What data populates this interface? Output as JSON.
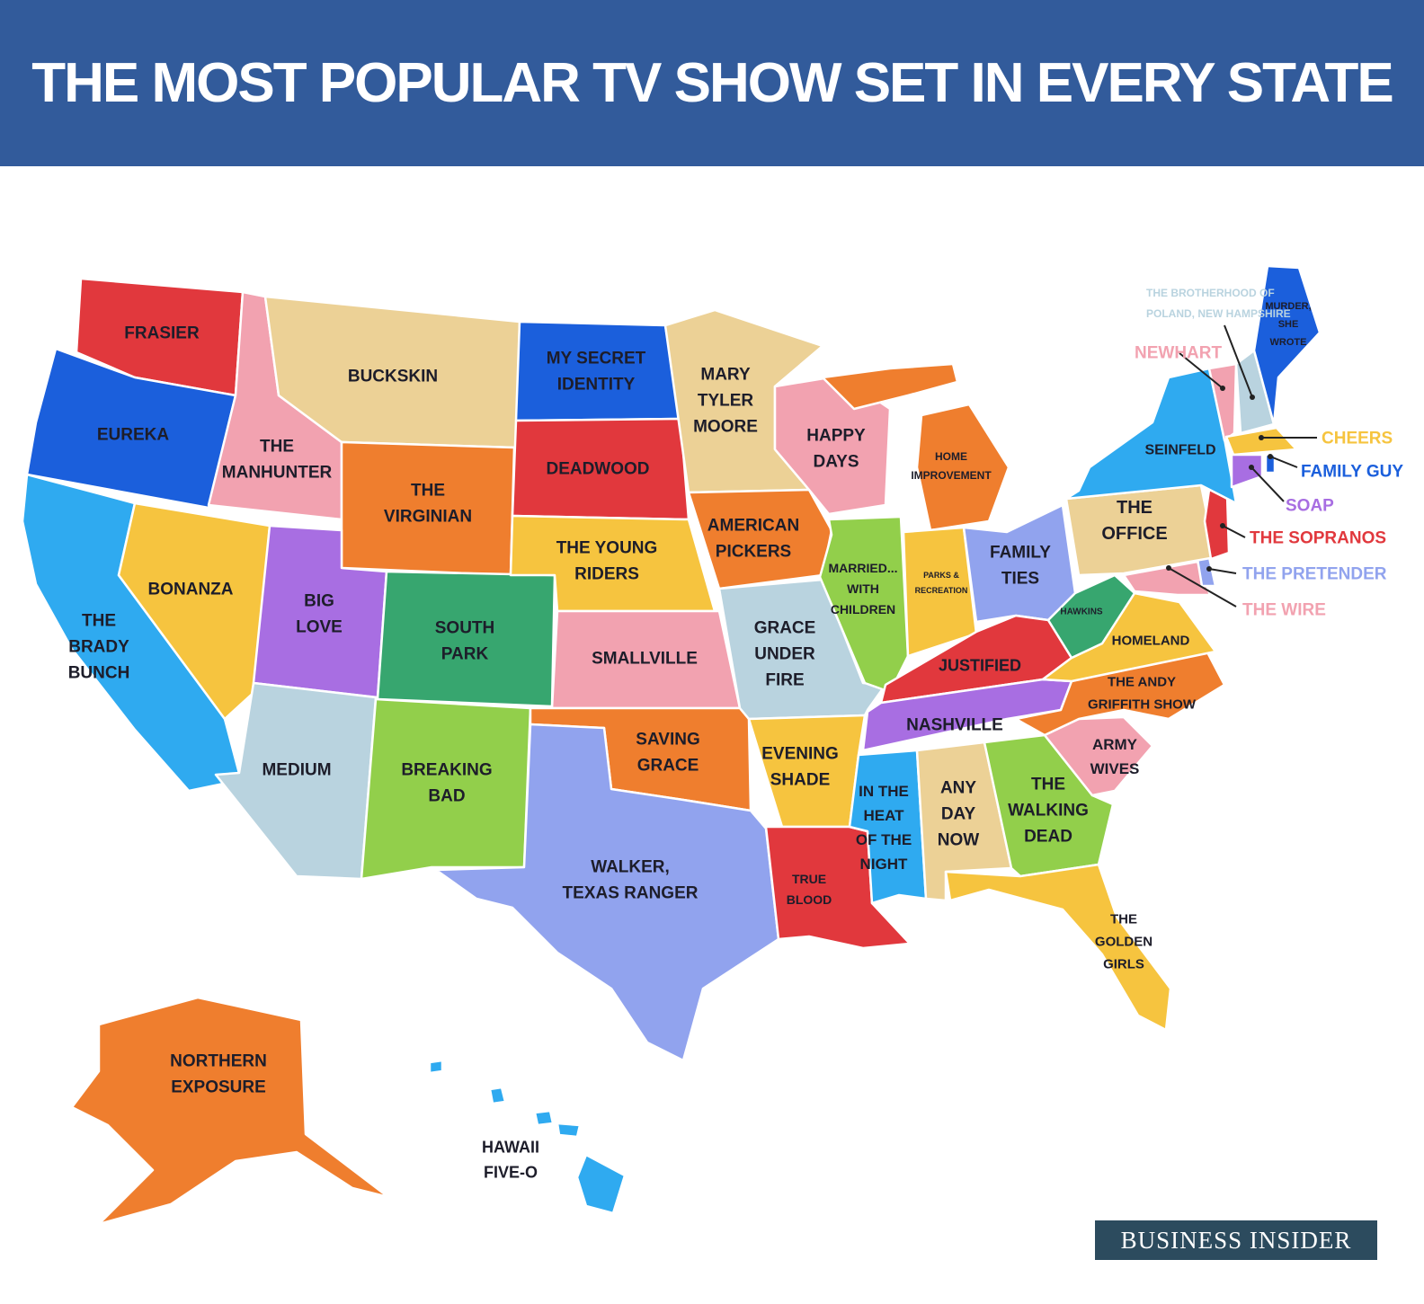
{
  "title": "THE MOST POPULAR TV SHOW SET IN EVERY STATE",
  "brand": "BUSINESS INSIDER",
  "colors": {
    "header": "#325b9b",
    "red": "#e1383d",
    "blue": "#1b5fdc",
    "tan": "#ecd196",
    "pink": "#f2a2b0",
    "orange": "#ef7e2e",
    "yellow": "#f6c43f",
    "purple": "#a86ee2",
    "teal": "#37a66f",
    "lightblue": "#2faaf0",
    "lightgreen": "#92cf4b",
    "grayblue": "#b9d3df",
    "periwinkle": "#91a3ee"
  },
  "regions": {
    "WA": {
      "color": "red",
      "lines": [
        "FRASIER"
      ]
    },
    "OR": {
      "color": "blue",
      "lines": [
        "EUREKA"
      ]
    },
    "CA": {
      "color": "lightblue",
      "lines": [
        "THE",
        "BRADY",
        "BUNCH"
      ]
    },
    "NV": {
      "color": "yellow",
      "lines": [
        "BONANZA"
      ]
    },
    "ID": {
      "color": "pink",
      "lines": [
        "THE",
        "MANHUNTER"
      ]
    },
    "MT": {
      "color": "tan",
      "lines": [
        "BUCKSKIN"
      ]
    },
    "WY": {
      "color": "orange",
      "lines": [
        "THE",
        "VIRGINIAN"
      ]
    },
    "UT": {
      "color": "purple",
      "lines": [
        "BIG",
        "LOVE"
      ]
    },
    "CO": {
      "color": "teal",
      "lines": [
        "SOUTH",
        "PARK"
      ]
    },
    "AZ": {
      "color": "grayblue",
      "lines": [
        "MEDIUM"
      ]
    },
    "NM": {
      "color": "lightgreen",
      "lines": [
        "BREAKING",
        "BAD"
      ]
    },
    "ND": {
      "color": "blue",
      "lines": [
        "MY SECRET",
        "IDENTITY"
      ]
    },
    "SD": {
      "color": "red",
      "lines": [
        "DEADWOOD"
      ]
    },
    "NE": {
      "color": "yellow",
      "lines": [
        "THE YOUNG",
        "RIDERS"
      ]
    },
    "KS": {
      "color": "pink",
      "lines": [
        "SMALLVILLE"
      ]
    },
    "OK": {
      "color": "orange",
      "lines": [
        "SAVING",
        "GRACE"
      ]
    },
    "TX": {
      "color": "periwinkle",
      "lines": [
        "WALKER,",
        "TEXAS RANGER"
      ]
    },
    "MN": {
      "color": "tan",
      "lines": [
        "MARY",
        "TYLER",
        "MOORE"
      ]
    },
    "IA": {
      "color": "orange",
      "lines": [
        "AMERICAN",
        "PICKERS"
      ]
    },
    "MO": {
      "color": "grayblue",
      "lines": [
        "GRACE",
        "UNDER",
        "FIRE"
      ]
    },
    "AR": {
      "color": "yellow",
      "lines": [
        "EVENING",
        "SHADE"
      ]
    },
    "LA": {
      "color": "red",
      "lines": [
        "TRUE",
        "BLOOD"
      ]
    },
    "WI": {
      "color": "pink",
      "lines": [
        "HAPPY",
        "DAYS"
      ]
    },
    "MI": {
      "color": "orange",
      "lines": [
        "HOME",
        "IMPROVEMENT"
      ]
    },
    "IL": {
      "color": "lightgreen",
      "lines": [
        "MARRIED...",
        "WITH",
        "CHILDREN"
      ]
    },
    "IN": {
      "color": "yellow",
      "lines": [
        "PARKS &",
        "RECREATION"
      ]
    },
    "OH": {
      "color": "periwinkle",
      "lines": [
        "FAMILY",
        "TIES"
      ]
    },
    "KY": {
      "color": "red",
      "lines": [
        "JUSTIFIED"
      ]
    },
    "TN": {
      "color": "purple",
      "lines": [
        "NASHVILLE"
      ]
    },
    "MS": {
      "color": "lightblue",
      "lines": [
        "IN THE",
        "HEAT",
        "OF THE",
        "NIGHT"
      ]
    },
    "AL": {
      "color": "tan",
      "lines": [
        "ANY",
        "DAY",
        "NOW"
      ]
    },
    "GA": {
      "color": "lightgreen",
      "lines": [
        "THE",
        "WALKING",
        "DEAD"
      ]
    },
    "FL": {
      "color": "yellow",
      "lines": [
        "THE",
        "GOLDEN",
        "GIRLS"
      ]
    },
    "SC": {
      "color": "pink",
      "lines": [
        "ARMY",
        "WIVES"
      ]
    },
    "NC": {
      "color": "orange",
      "lines": [
        "THE ANDY",
        "GRIFFITH SHOW"
      ]
    },
    "VA": {
      "color": "yellow",
      "lines": [
        "HOMELAND"
      ]
    },
    "WV": {
      "color": "teal",
      "lines": [
        "HAWKINS"
      ]
    },
    "PA": {
      "color": "tan",
      "lines": [
        "THE",
        "OFFICE"
      ]
    },
    "NY": {
      "color": "lightblue",
      "lines": [
        "SEINFELD"
      ]
    },
    "ME": {
      "color": "blue",
      "lines": [
        "MURDER,",
        "SHE",
        "WROTE"
      ]
    },
    "VT": {
      "color": "pink",
      "lines": [
        "NEWHART"
      ]
    },
    "NH": {
      "color": "grayblue",
      "lines": [
        "THE BROTHERHOOD OF",
        "POLAND, NEW HAMPSHIRE"
      ]
    },
    "MA": {
      "color": "yellow",
      "lines": [
        "CHEERS"
      ]
    },
    "RI": {
      "color": "blue",
      "lines": [
        "FAMILY GUY"
      ]
    },
    "CT": {
      "color": "purple",
      "lines": [
        "SOAP"
      ]
    },
    "NJ": {
      "color": "red",
      "lines": [
        "THE SOPRANOS"
      ]
    },
    "DE": {
      "color": "periwinkle",
      "lines": [
        "THE PRETENDER"
      ]
    },
    "MD": {
      "color": "pink",
      "lines": [
        "THE WIRE"
      ]
    },
    "AK": {
      "color": "orange",
      "lines": [
        "NORTHERN",
        "EXPOSURE"
      ]
    },
    "HI": {
      "color": "lightblue",
      "lines": [
        "HAWAII",
        "FIVE-O"
      ]
    }
  }
}
